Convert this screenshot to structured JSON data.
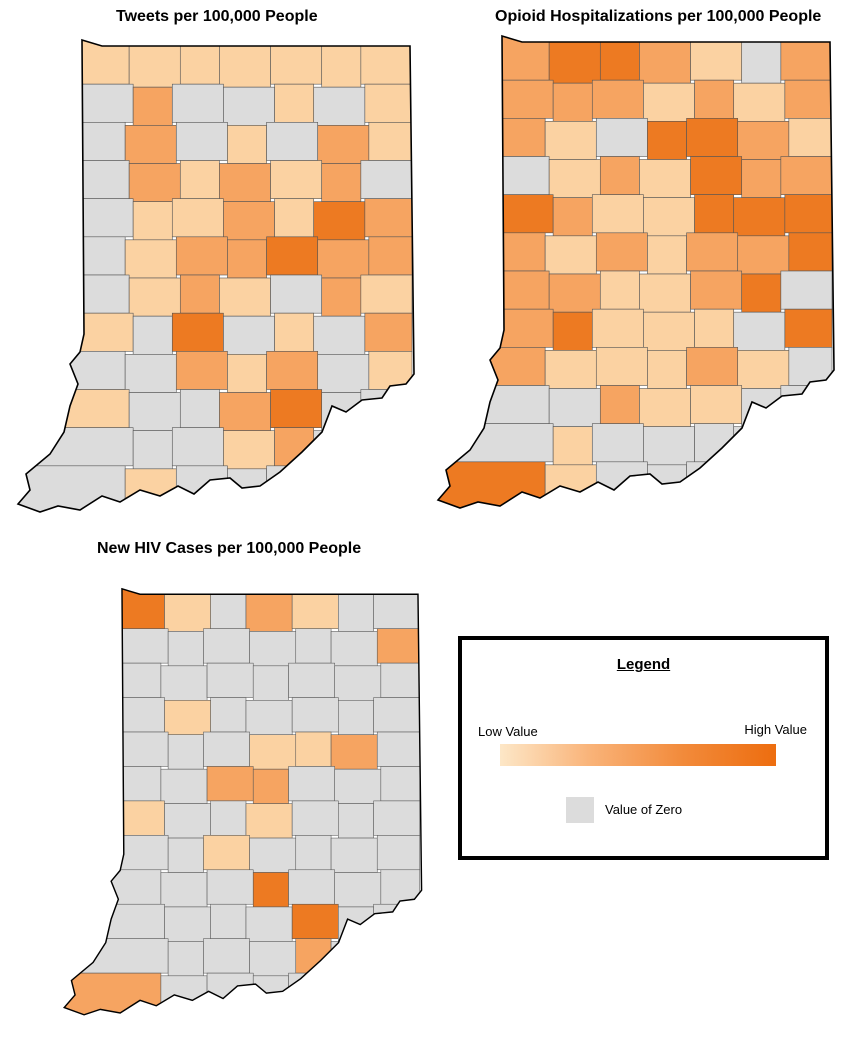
{
  "maps": [
    {
      "id": "tweets",
      "title": "Tweets per 100,000 People",
      "counties": [
        [
          1,
          1,
          1,
          1,
          1,
          1,
          1
        ],
        [
          0,
          2,
          0,
          0,
          1,
          0,
          1
        ],
        [
          0,
          2,
          0,
          1,
          0,
          2,
          1
        ],
        [
          0,
          2,
          1,
          2,
          1,
          2,
          0
        ],
        [
          0,
          1,
          1,
          2,
          1,
          3,
          2
        ],
        [
          0,
          1,
          2,
          2,
          3,
          2,
          2
        ],
        [
          0,
          1,
          2,
          1,
          0,
          2,
          1
        ],
        [
          1,
          0,
          3,
          0,
          1,
          0,
          2
        ],
        [
          0,
          0,
          2,
          1,
          2,
          0,
          1
        ],
        [
          1,
          0,
          0,
          2,
          3,
          0,
          0
        ],
        [
          0,
          0,
          0,
          1,
          2,
          0,
          0
        ],
        [
          0,
          1,
          0,
          0,
          0,
          0,
          0
        ]
      ]
    },
    {
      "id": "opioid",
      "title": "Opioid Hospitalizations per 100,000 People",
      "counties": [
        [
          2,
          3,
          3,
          2,
          1,
          0,
          2
        ],
        [
          2,
          2,
          2,
          1,
          2,
          1,
          2
        ],
        [
          2,
          1,
          0,
          3,
          3,
          2,
          1
        ],
        [
          0,
          1,
          2,
          1,
          3,
          2,
          2
        ],
        [
          3,
          2,
          1,
          1,
          3,
          3,
          3
        ],
        [
          2,
          1,
          2,
          1,
          2,
          2,
          3
        ],
        [
          2,
          2,
          1,
          1,
          2,
          3,
          0
        ],
        [
          2,
          3,
          1,
          1,
          1,
          0,
          3
        ],
        [
          2,
          1,
          1,
          1,
          2,
          1,
          0
        ],
        [
          0,
          0,
          2,
          1,
          1,
          0,
          0
        ],
        [
          0,
          1,
          0,
          0,
          0,
          0,
          0
        ],
        [
          3,
          1,
          0,
          0,
          0,
          0,
          0
        ]
      ]
    },
    {
      "id": "hiv",
      "title": "New HIV Cases per 100,000 People",
      "counties": [
        [
          3,
          1,
          0,
          2,
          1,
          0,
          0
        ],
        [
          0,
          0,
          0,
          0,
          0,
          0,
          2
        ],
        [
          0,
          0,
          0,
          0,
          0,
          0,
          0
        ],
        [
          0,
          1,
          0,
          0,
          0,
          0,
          0
        ],
        [
          0,
          0,
          0,
          1,
          1,
          2,
          0
        ],
        [
          0,
          0,
          2,
          2,
          0,
          0,
          0
        ],
        [
          1,
          0,
          0,
          1,
          0,
          0,
          0
        ],
        [
          0,
          0,
          1,
          0,
          0,
          0,
          0
        ],
        [
          0,
          0,
          0,
          3,
          0,
          0,
          0
        ],
        [
          0,
          0,
          0,
          0,
          3,
          0,
          0
        ],
        [
          0,
          0,
          0,
          0,
          2,
          0,
          0
        ],
        [
          2,
          0,
          0,
          0,
          0,
          0,
          0
        ]
      ]
    }
  ],
  "colors": {
    "zero": "#dcdcdc",
    "scale": [
      "#dcdcdc",
      "#fbd2a2",
      "#f6a461",
      "#ed7a22"
    ],
    "ramp_low": "#fde7c7",
    "ramp_high": "#ed6d0f"
  },
  "legend": {
    "title": "Legend",
    "low_label": "Low Value",
    "high_label": "High Value",
    "zero_label": "Value of Zero"
  }
}
